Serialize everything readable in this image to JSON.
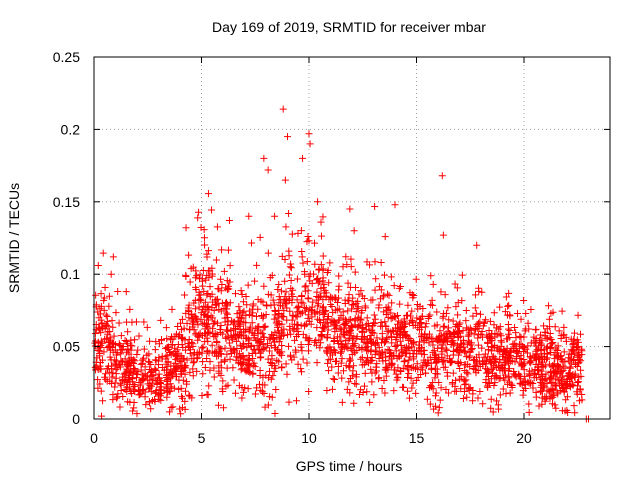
{
  "chart_data": {
    "type": "scatter",
    "title": "Day 169 of 2019, SRMTID for receiver mbar",
    "xlabel": "GPS time / hours",
    "ylabel": "SRMTID / TECUs",
    "xlim": [
      0,
      24
    ],
    "ylim": [
      0,
      0.25
    ],
    "xticks": [
      0,
      5,
      10,
      15,
      20
    ],
    "yticks": [
      0,
      0.05,
      0.1,
      0.15,
      0.2,
      0.25
    ],
    "xtick_labels": [
      "0",
      "5",
      "10",
      "15",
      "20"
    ],
    "ytick_labels": [
      "0",
      "0.05",
      "0.1",
      "0.15",
      "0.2",
      "0.25"
    ],
    "grid": true,
    "marker": "+",
    "marker_color": "#ff0000",
    "series": [
      {
        "name": "SRMTID",
        "generator": {
          "seed": 169,
          "x_start": 0.0,
          "x_end": 22.7,
          "count": 2600,
          "baseline_trend": [
            [
              0.0,
              0.055
            ],
            [
              0.5,
              0.05
            ],
            [
              1.0,
              0.04
            ],
            [
              1.5,
              0.035
            ],
            [
              2.0,
              0.03
            ],
            [
              2.5,
              0.025
            ],
            [
              3.0,
              0.028
            ],
            [
              3.5,
              0.035
            ],
            [
              4.0,
              0.045
            ],
            [
              4.5,
              0.06
            ],
            [
              5.0,
              0.07
            ],
            [
              5.5,
              0.068
            ],
            [
              6.0,
              0.062
            ],
            [
              6.5,
              0.055
            ],
            [
              7.0,
              0.05
            ],
            [
              7.5,
              0.048
            ],
            [
              8.0,
              0.05
            ],
            [
              8.5,
              0.06
            ],
            [
              9.0,
              0.068
            ],
            [
              9.5,
              0.07
            ],
            [
              10.0,
              0.075
            ],
            [
              10.5,
              0.072
            ],
            [
              11.0,
              0.065
            ],
            [
              12.0,
              0.06
            ],
            [
              13.0,
              0.055
            ],
            [
              14.0,
              0.052
            ],
            [
              15.0,
              0.05
            ],
            [
              16.0,
              0.045
            ],
            [
              17.0,
              0.045
            ],
            [
              18.0,
              0.045
            ],
            [
              19.0,
              0.042
            ],
            [
              20.0,
              0.04
            ],
            [
              21.0,
              0.035
            ],
            [
              22.0,
              0.032
            ],
            [
              22.7,
              0.04
            ]
          ],
          "spike_points": [
            [
              8.8,
              0.214
            ],
            [
              9.0,
              0.195
            ],
            [
              10.0,
              0.197
            ],
            [
              10.05,
              0.19
            ],
            [
              9.7,
              0.18
            ],
            [
              7.9,
              0.18
            ],
            [
              8.1,
              0.172
            ],
            [
              8.9,
              0.165
            ],
            [
              16.2,
              0.168
            ],
            [
              16.25,
              0.127
            ],
            [
              14.0,
              0.148
            ],
            [
              11.9,
              0.145
            ],
            [
              7.2,
              0.14
            ],
            [
              10.4,
              0.15
            ],
            [
              0.2,
              0.106
            ],
            [
              0.9,
              0.112
            ],
            [
              0.8,
              0.1
            ],
            [
              1.5,
              0.088
            ],
            [
              22.9,
              0.0
            ],
            [
              23.0,
              0.0
            ],
            [
              0.35,
              0.002
            ],
            [
              17.8,
              0.12
            ],
            [
              12.1,
              0.13
            ],
            [
              8.4,
              0.14
            ]
          ]
        }
      }
    ]
  }
}
